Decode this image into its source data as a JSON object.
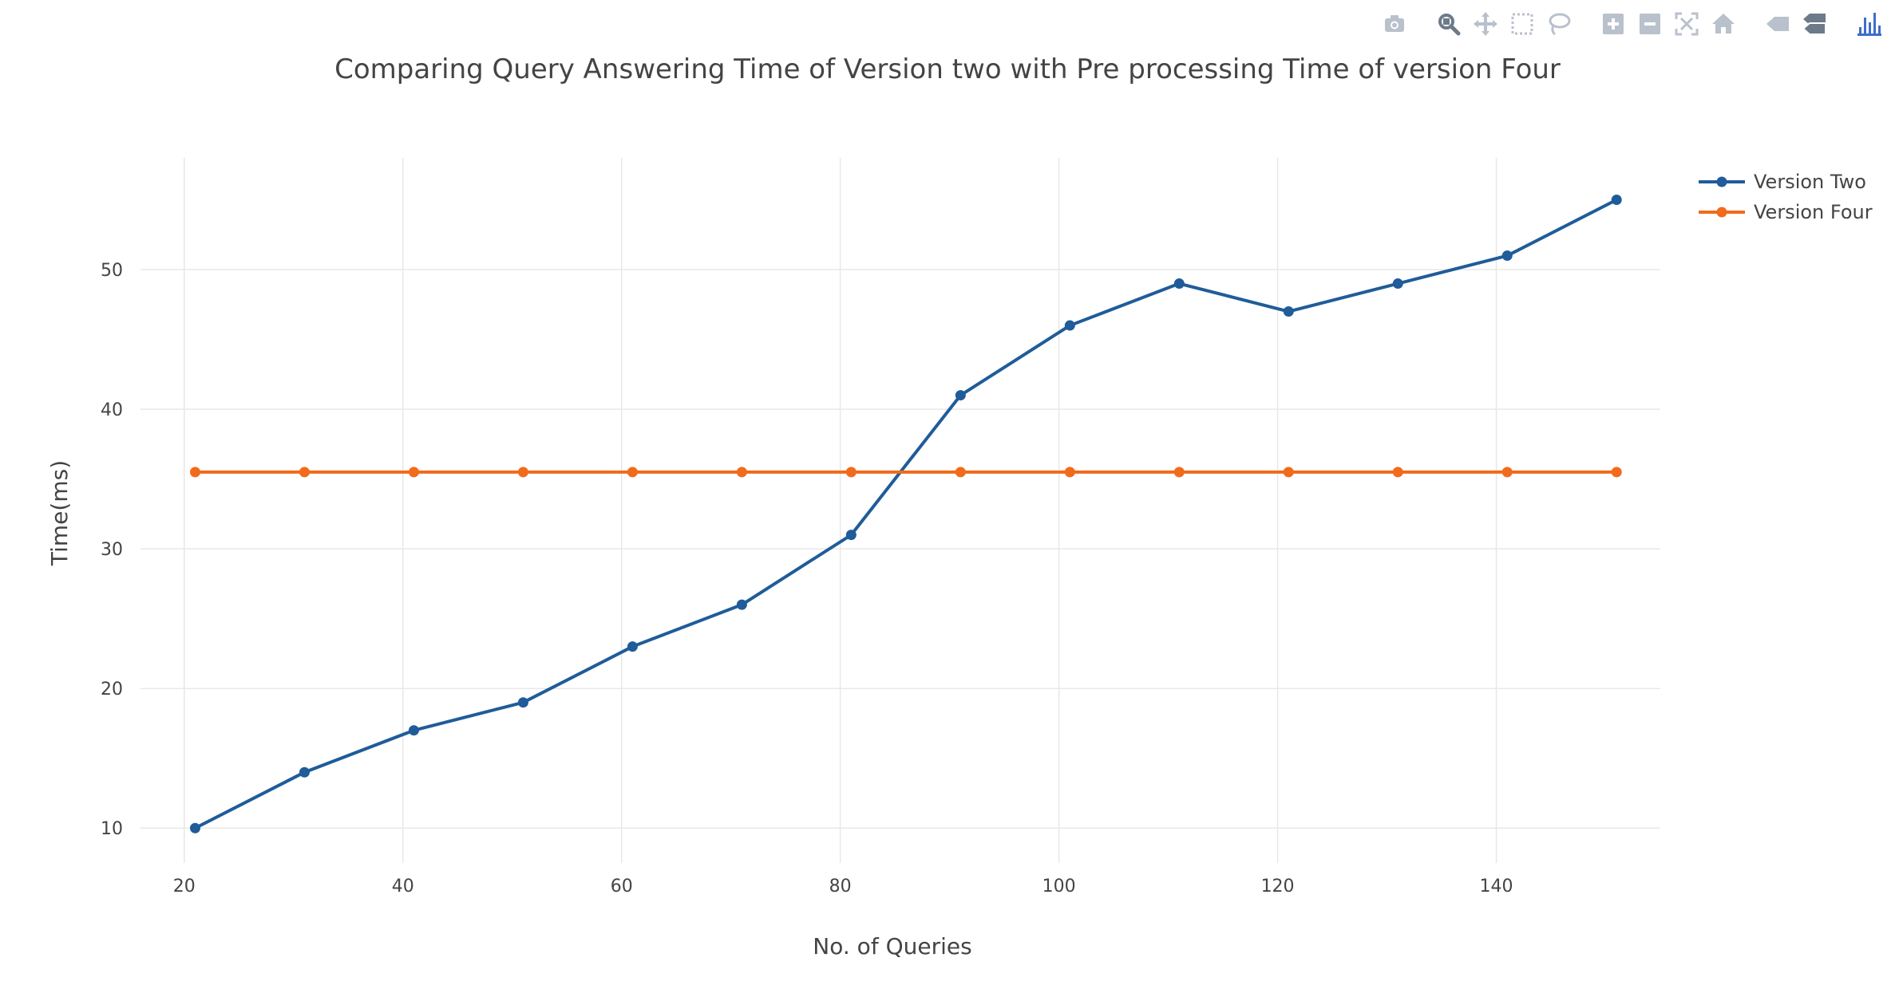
{
  "modebar": {
    "buttons": [
      {
        "name": "camera-icon",
        "group": 0
      },
      {
        "name": "zoom-icon",
        "group": 1
      },
      {
        "name": "pan-icon",
        "group": 1
      },
      {
        "name": "box-select-icon",
        "group": 1
      },
      {
        "name": "lasso-select-icon",
        "group": 1
      },
      {
        "name": "zoom-in-icon",
        "group": 2
      },
      {
        "name": "zoom-out-icon",
        "group": 2
      },
      {
        "name": "autoscale-icon",
        "group": 2
      },
      {
        "name": "reset-axes-icon",
        "group": 2
      },
      {
        "name": "spike-lines-icon",
        "group": 3
      },
      {
        "name": "compare-hover-icon",
        "group": 3
      },
      {
        "name": "plotly-logo-icon",
        "group": 4
      }
    ],
    "icon_color": "#b9c1cc",
    "active_icon_color": "#6d7a8a",
    "logo_color": "#3d6ec9"
  },
  "chart_data": {
    "type": "line",
    "title": "Comparing Query Answering Time of Version two with Pre processing Time of version Four",
    "xlabel": "No. of Queries",
    "ylabel": "Time(ms)",
    "x_range": [
      16,
      155
    ],
    "y_range": [
      7.5,
      58
    ],
    "x_ticks": [
      20,
      40,
      60,
      80,
      100,
      120,
      140
    ],
    "y_ticks": [
      10,
      20,
      30,
      40,
      50
    ],
    "grid": true,
    "legend_position": "top-right",
    "series": [
      {
        "name": "Version Two",
        "color": "#1f5c99",
        "x": [
          21,
          31,
          41,
          51,
          61,
          71,
          81,
          91,
          101,
          111,
          121,
          131,
          141,
          151
        ],
        "y": [
          10,
          14,
          17,
          19,
          23,
          26,
          31,
          41,
          46,
          49,
          47,
          49,
          51,
          55
        ]
      },
      {
        "name": "Version Four",
        "color": "#f26a1b",
        "x": [
          21,
          31,
          41,
          51,
          61,
          71,
          81,
          91,
          101,
          111,
          121,
          131,
          141,
          151
        ],
        "y": [
          35.5,
          35.5,
          35.5,
          35.5,
          35.5,
          35.5,
          35.5,
          35.5,
          35.5,
          35.5,
          35.5,
          35.5,
          35.5,
          35.5
        ]
      }
    ]
  }
}
